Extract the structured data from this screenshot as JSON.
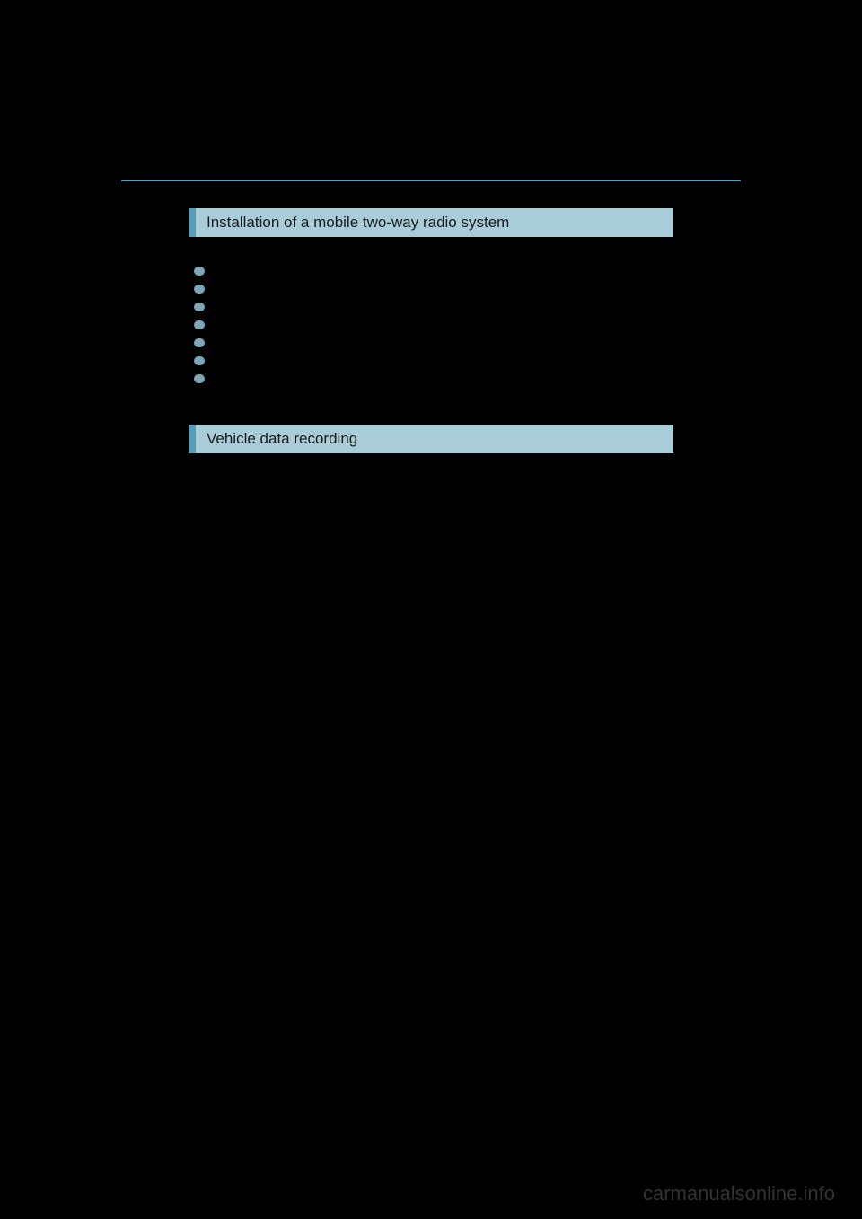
{
  "page": {
    "divider_color": "#5a9bb5",
    "header_accent_color": "#5a9bb5",
    "header_bg_color": "#a8cdd9",
    "header_text_color": "#1a1a1a",
    "bullet_color": "#7ba8b8",
    "background_color": "#000000"
  },
  "sections": [
    {
      "title": "Installation of a mobile two-way radio system",
      "bullets": [
        "",
        "",
        "",
        "",
        "",
        "",
        ""
      ]
    },
    {
      "title": "Vehicle data recording",
      "bullets": []
    }
  ],
  "watermark": "carmanualsonline.info"
}
